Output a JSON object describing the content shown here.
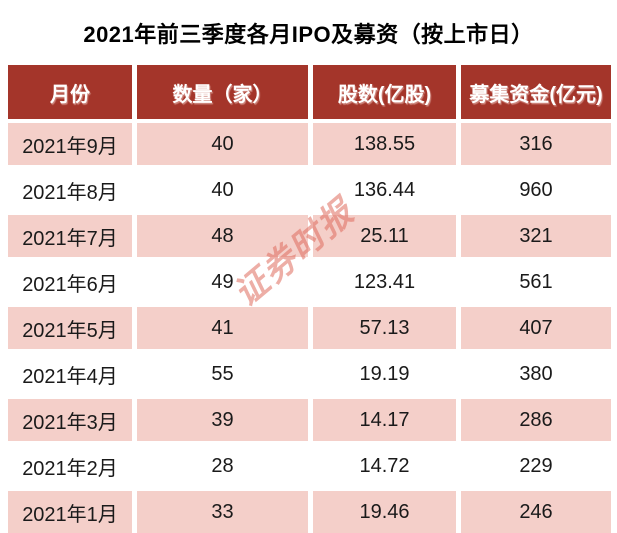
{
  "title": "2021年前三季度各月IPO及募资（按上市日）",
  "watermark": {
    "text": "证券时报"
  },
  "colors": {
    "header_bg": "#A4352A",
    "header_text": "#FFFFFF",
    "row_bg": "#FFFFFF",
    "row_alt_bg": "#F4CFC9",
    "text": "#1A1A1A",
    "title_text": "#000000",
    "watermark": "#E06C5E"
  },
  "chart_data": {
    "type": "table",
    "title": "2021年前三季度各月IPO及募资（按上市日）",
    "columns": [
      "月份",
      "数量（家）",
      "股数(亿股)",
      "募集资金(亿元)"
    ],
    "rows": [
      {
        "month": "2021年9月",
        "count": "40",
        "shares": "138.55",
        "funds": "316"
      },
      {
        "month": "2021年8月",
        "count": "40",
        "shares": "136.44",
        "funds": "960"
      },
      {
        "month": "2021年7月",
        "count": "48",
        "shares": "25.11",
        "funds": "321"
      },
      {
        "month": "2021年6月",
        "count": "49",
        "shares": "123.41",
        "funds": "561"
      },
      {
        "month": "2021年5月",
        "count": "41",
        "shares": "57.13",
        "funds": "407"
      },
      {
        "month": "2021年4月",
        "count": "55",
        "shares": "19.19",
        "funds": "380"
      },
      {
        "month": "2021年3月",
        "count": "39",
        "shares": "14.17",
        "funds": "286"
      },
      {
        "month": "2021年2月",
        "count": "28",
        "shares": "14.72",
        "funds": "229"
      },
      {
        "month": "2021年1月",
        "count": "33",
        "shares": "19.46",
        "funds": "246"
      }
    ],
    "layout_hints": {
      "header_position": "top",
      "zebra_striping": "odd-rows-pink",
      "grid": "white gaps between cells",
      "watermark": "证券时报 rotated -40deg over rows 3-5"
    }
  }
}
